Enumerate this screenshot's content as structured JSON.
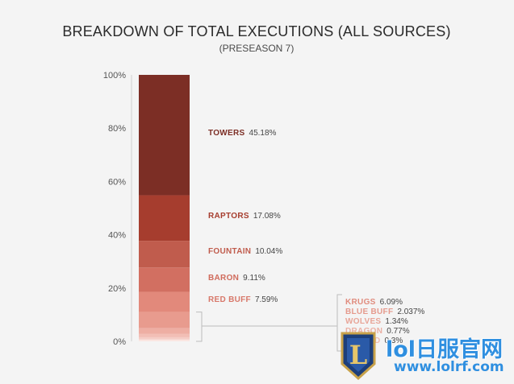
{
  "chart_data": {
    "type": "bar",
    "stacked": true,
    "title": "BREAKDOWN OF TOTAL EXECUTIONS (ALL SOURCES)",
    "subtitle": "(PRESEASON 7)",
    "ylim": [
      0,
      100
    ],
    "y_ticks": [
      "0%",
      "20%",
      "40%",
      "60%",
      "80%",
      "100%"
    ],
    "grid": false,
    "segments": [
      {
        "name": "TOWERS",
        "value_label": "45.18%",
        "value": 45.18,
        "color": "#7c2e25",
        "label_color": "#7c2e25"
      },
      {
        "name": "RAPTORS",
        "value_label": "17.08%",
        "value": 17.08,
        "color": "#a63d2e",
        "label_color": "#a63d2e"
      },
      {
        "name": "FOUNTAIN",
        "value_label": "10.04%",
        "value": 10.04,
        "color": "#c05c4d",
        "label_color": "#c05c4d"
      },
      {
        "name": "BARON",
        "value_label": "9.11%",
        "value": 9.11,
        "color": "#d26f61",
        "label_color": "#d06b5c"
      },
      {
        "name": "RED BUFF",
        "value_label": "7.59%",
        "value": 7.59,
        "color": "#e2897b",
        "label_color": "#d8786a"
      },
      {
        "name": "KRUGS",
        "value_label": "6.09%",
        "value": 6.09,
        "color": "#e89b8e",
        "label_color": "#e08c7e"
      },
      {
        "name": "BLUE BUFF",
        "value_label": "2.037%",
        "value": 2.037,
        "color": "#eeaea3",
        "label_color": "#e59a8d"
      },
      {
        "name": "WOLVES",
        "value_label": "1.34%",
        "value": 1.34,
        "color": "#f2beb5",
        "label_color": "#e8a598"
      },
      {
        "name": "DRAGON",
        "value_label": "0.77%",
        "value": 0.77,
        "color": "#f5cdc6",
        "label_color": "#ebb0a4"
      },
      {
        "name": "HERALD",
        "value_label": "0.3%",
        "value": 0.3,
        "color": "#f8dcd7",
        "label_color": "#eebdb2"
      }
    ]
  },
  "watermark": {
    "line1": "lol日服官网",
    "line2": "www.lolrf.com",
    "shield_letter": "L"
  }
}
